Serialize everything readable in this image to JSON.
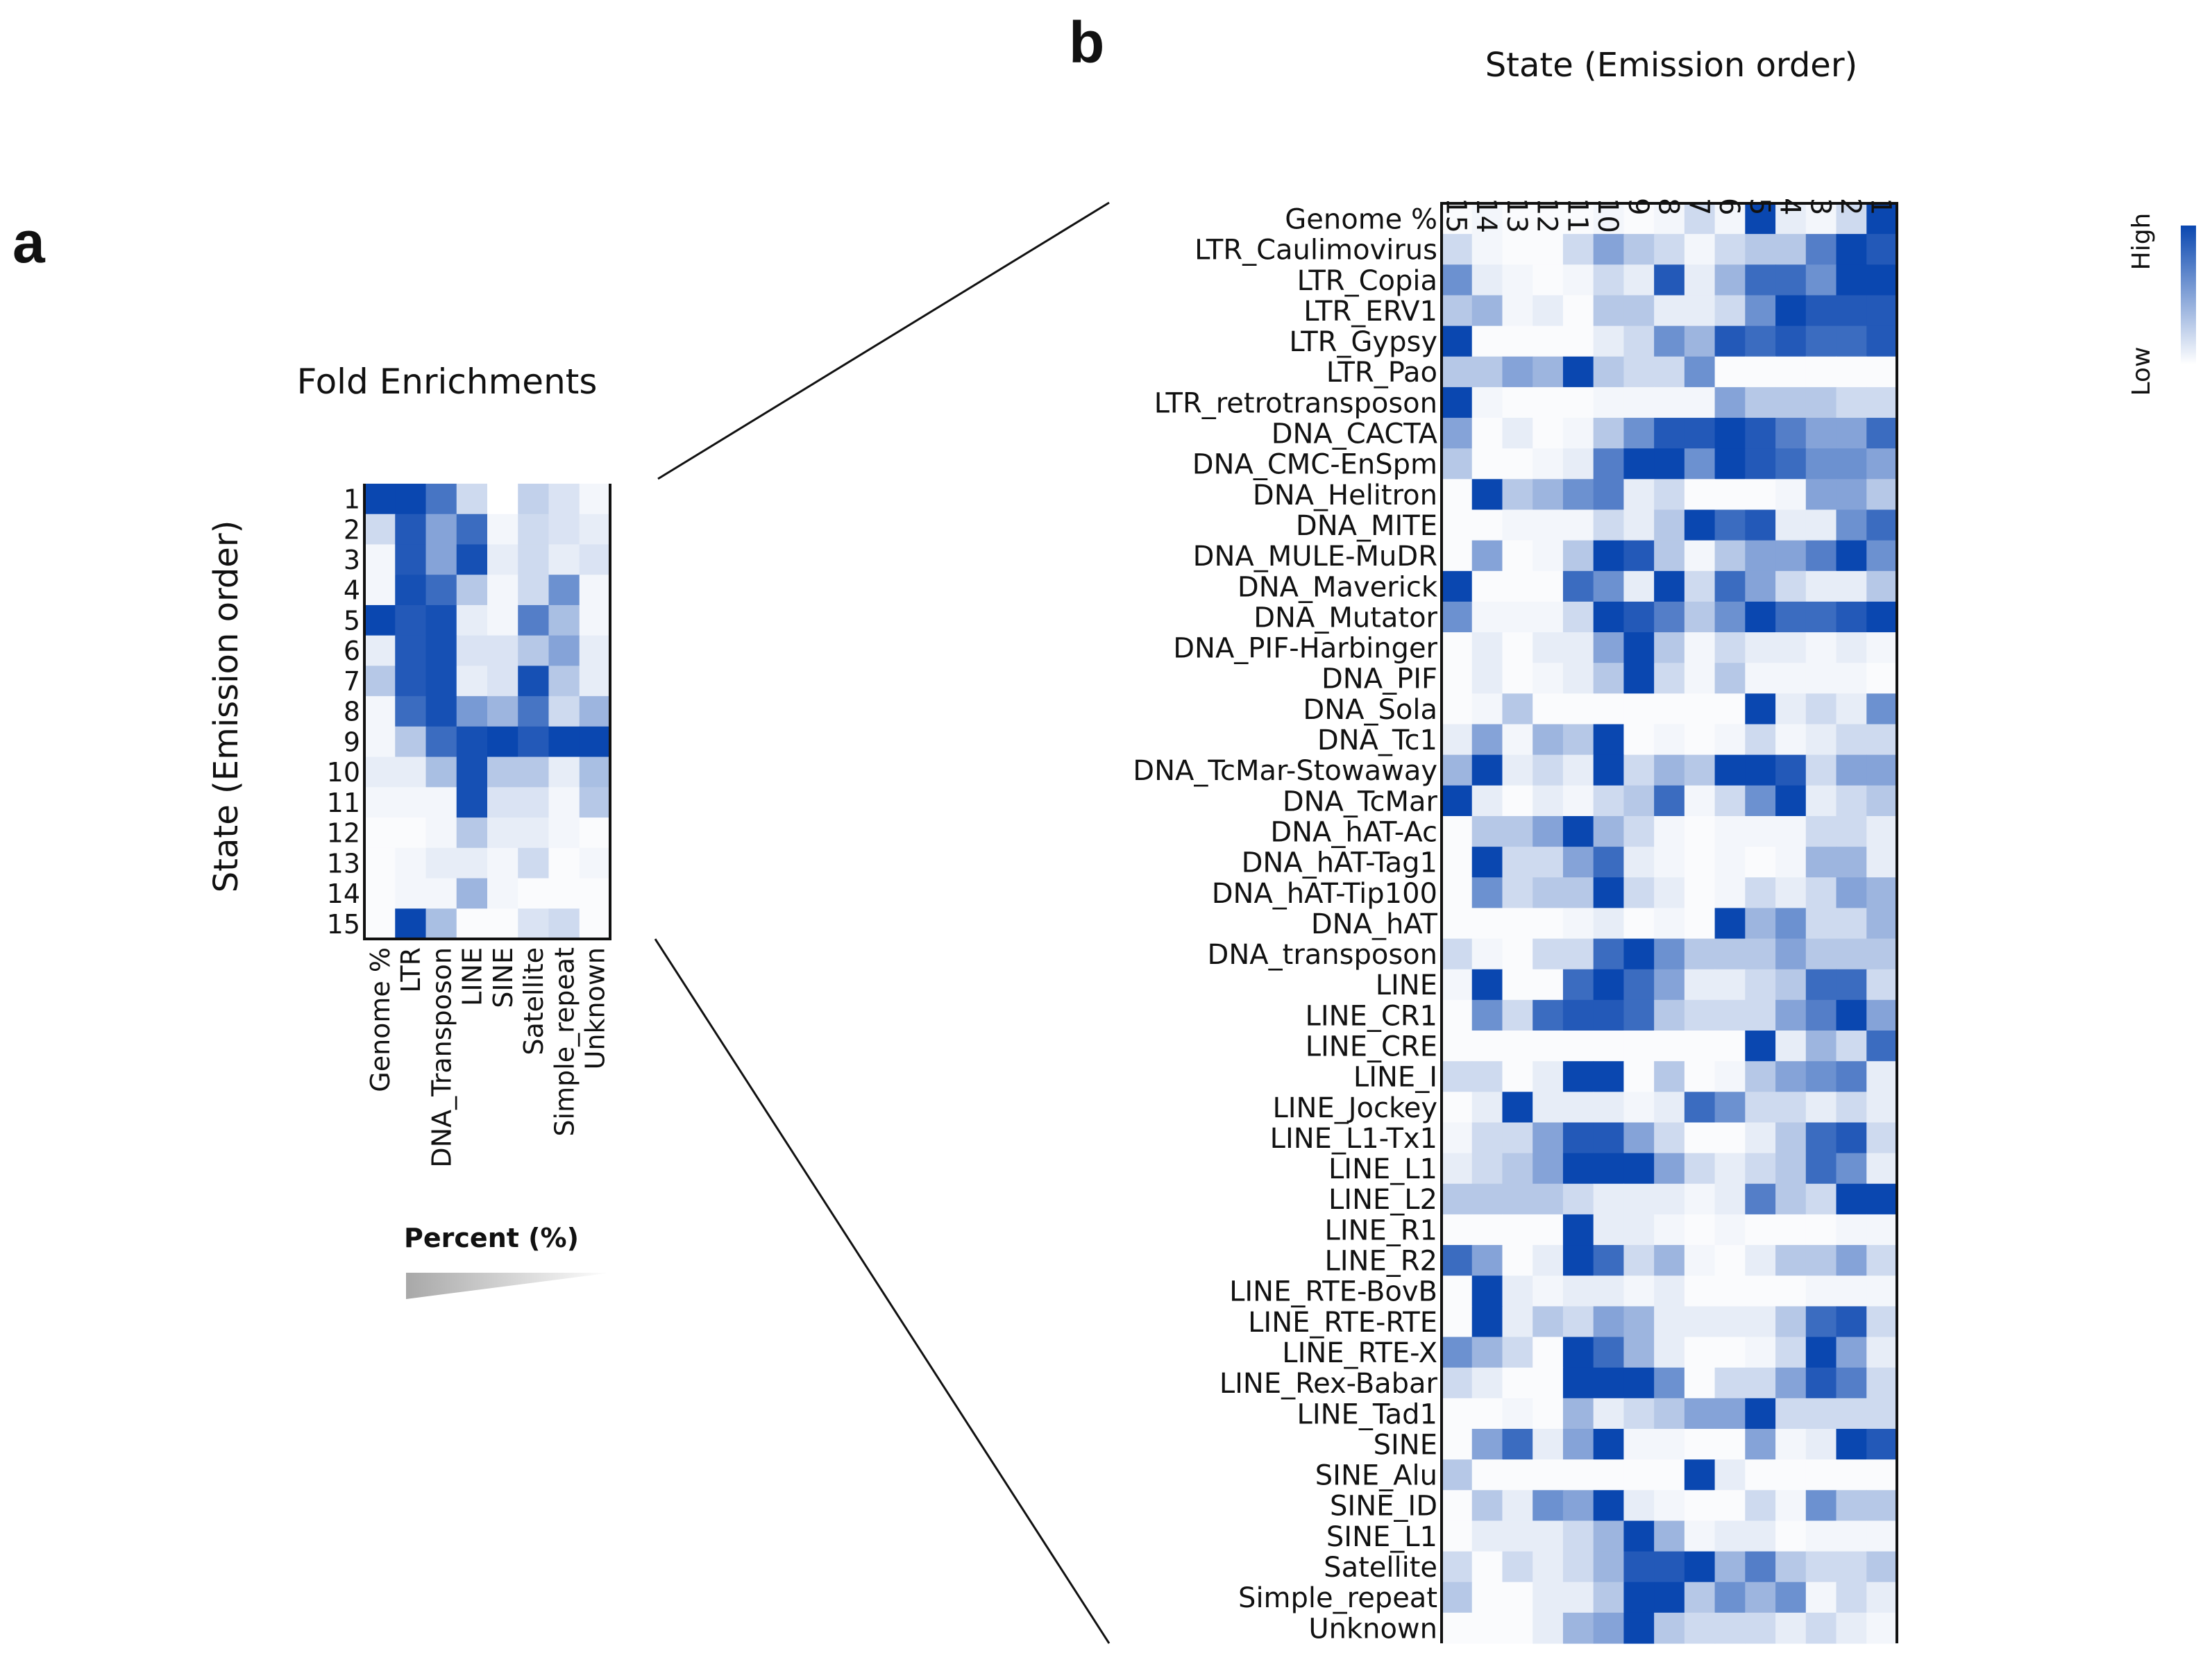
{
  "panels": {
    "a": "a",
    "b": "b"
  },
  "chart_data": [
    {
      "type": "heatmap",
      "panel": "a",
      "title": "Fold Enrichments",
      "ylabel": "State (Emission order)",
      "rows": [
        "1",
        "2",
        "3",
        "4",
        "5",
        "6",
        "7",
        "8",
        "9",
        "10",
        "11",
        "12",
        "13",
        "14",
        "15"
      ],
      "columns": [
        "Genome %",
        "LTR",
        "DNA_Transposon",
        "LINE",
        "SINE",
        "Satellite",
        "Simple_repeat",
        "Unknown"
      ],
      "values": [
        [
          1.0,
          1.0,
          0.75,
          0.2,
          0.0,
          0.25,
          0.15,
          0.05
        ],
        [
          0.2,
          0.9,
          0.5,
          0.8,
          0.05,
          0.2,
          0.15,
          0.1
        ],
        [
          0.05,
          0.9,
          0.5,
          0.95,
          0.1,
          0.2,
          0.1,
          0.15
        ],
        [
          0.05,
          0.95,
          0.8,
          0.3,
          0.05,
          0.2,
          0.6,
          0.05
        ],
        [
          1.0,
          0.9,
          0.95,
          0.1,
          0.05,
          0.7,
          0.35,
          0.05
        ],
        [
          0.1,
          0.9,
          0.95,
          0.15,
          0.15,
          0.3,
          0.5,
          0.1
        ],
        [
          0.3,
          0.9,
          0.95,
          0.1,
          0.15,
          0.95,
          0.3,
          0.1
        ],
        [
          0.05,
          0.8,
          0.95,
          0.55,
          0.4,
          0.75,
          0.2,
          0.4
        ],
        [
          0.05,
          0.3,
          0.8,
          0.95,
          1.0,
          0.9,
          1.0,
          1.0
        ],
        [
          0.1,
          0.1,
          0.35,
          0.95,
          0.3,
          0.3,
          0.1,
          0.35
        ],
        [
          0.05,
          0.05,
          0.05,
          0.95,
          0.15,
          0.15,
          0.05,
          0.3
        ],
        [
          0.02,
          0.02,
          0.05,
          0.3,
          0.1,
          0.1,
          0.05,
          0.02
        ],
        [
          0.02,
          0.05,
          0.1,
          0.1,
          0.05,
          0.2,
          0.02,
          0.05
        ],
        [
          0.02,
          0.05,
          0.05,
          0.4,
          0.05,
          0.02,
          0.02,
          0.02
        ],
        [
          0.02,
          1.0,
          0.35,
          0.02,
          0.02,
          0.15,
          0.2,
          0.02
        ]
      ],
      "legend": {
        "label": "Percent (%)"
      }
    },
    {
      "type": "heatmap",
      "panel": "b",
      "title": "State (Emission order)",
      "columns": [
        "15",
        "14",
        "13",
        "12",
        "11",
        "10",
        "9",
        "8",
        "7",
        "6",
        "5",
        "4",
        "3",
        "2",
        "1"
      ],
      "rows": [
        "Genome %",
        "LTR_Caulimovirus",
        "LTR_Copia",
        "LTR_ERV1",
        "LTR_Gypsy",
        "LTR_Pao",
        "LTR_retrotransposon",
        "DNA_CACTA",
        "DNA_CMC-EnSpm",
        "DNA_Helitron",
        "DNA_MITE",
        "DNA_MULE-MuDR",
        "DNA_Maverick",
        "DNA_Mutator",
        "DNA_PIF-Harbinger",
        "DNA_PIF",
        "DNA_Sola",
        "DNA_Tc1",
        "DNA_TcMar-Stowaway",
        "DNA_TcMar",
        "DNA_hAT-Ac",
        "DNA_hAT-Tag1",
        "DNA_hAT-Tip100",
        "DNA_hAT",
        "DNA_transposon",
        "LINE",
        "LINE_CR1",
        "LINE_CRE",
        "LINE_I",
        "LINE_Jockey",
        "LINE_L1-Tx1",
        "LINE_L1",
        "LINE_L2",
        "LINE_R1",
        "LINE_R2",
        "LINE_RTE-BovB",
        "LINE_RTE-RTE",
        "LINE_RTE-X",
        "LINE_Rex-Babar",
        "LINE_Tad1",
        "SINE",
        "SINE_Alu",
        "SINE_ID",
        "SINE_L1",
        "Satellite",
        "Simple_repeat",
        "Unknown"
      ],
      "values": [
        [
          0.02,
          0.05,
          0.02,
          0.02,
          0.02,
          0.05,
          0.02,
          0.05,
          0.2,
          0.05,
          1.0,
          0.1,
          0.05,
          0.2,
          1.0
        ],
        [
          0.2,
          0.05,
          0.02,
          0.02,
          0.2,
          0.5,
          0.3,
          0.2,
          0.05,
          0.2,
          0.3,
          0.3,
          0.7,
          1.0,
          0.9
        ],
        [
          0.6,
          0.1,
          0.05,
          0.02,
          0.05,
          0.2,
          0.1,
          0.9,
          0.1,
          0.4,
          0.8,
          0.8,
          0.6,
          1.0,
          1.0
        ],
        [
          0.3,
          0.4,
          0.05,
          0.1,
          0.02,
          0.3,
          0.3,
          0.1,
          0.1,
          0.2,
          0.6,
          1.0,
          0.9,
          0.9,
          0.9
        ],
        [
          1.0,
          0.02,
          0.02,
          0.02,
          0.02,
          0.1,
          0.2,
          0.6,
          0.4,
          0.9,
          0.8,
          0.9,
          0.8,
          0.8,
          0.9
        ],
        [
          0.3,
          0.3,
          0.5,
          0.4,
          1.0,
          0.3,
          0.2,
          0.2,
          0.6,
          0.02,
          0.02,
          0.02,
          0.02,
          0.02,
          0.02
        ],
        [
          1.0,
          0.05,
          0.02,
          0.02,
          0.02,
          0.05,
          0.05,
          0.05,
          0.05,
          0.5,
          0.3,
          0.3,
          0.3,
          0.2,
          0.2
        ],
        [
          0.5,
          0.02,
          0.1,
          0.02,
          0.05,
          0.3,
          0.6,
          0.9,
          0.9,
          1.0,
          0.9,
          0.7,
          0.5,
          0.5,
          0.8
        ],
        [
          0.3,
          0.02,
          0.02,
          0.05,
          0.1,
          0.7,
          1.0,
          1.0,
          0.6,
          1.0,
          0.9,
          0.8,
          0.6,
          0.6,
          0.5
        ],
        [
          0.02,
          1.0,
          0.3,
          0.4,
          0.6,
          0.7,
          0.1,
          0.2,
          0.02,
          0.02,
          0.02,
          0.05,
          0.5,
          0.5,
          0.3
        ],
        [
          0.02,
          0.02,
          0.05,
          0.05,
          0.05,
          0.2,
          0.1,
          0.3,
          1.0,
          0.8,
          0.9,
          0.1,
          0.1,
          0.6,
          0.8
        ],
        [
          0.02,
          0.5,
          0.02,
          0.05,
          0.3,
          1.0,
          0.9,
          0.3,
          0.05,
          0.3,
          0.5,
          0.5,
          0.7,
          1.0,
          0.6
        ],
        [
          1.0,
          0.02,
          0.02,
          0.02,
          0.8,
          0.6,
          0.1,
          1.0,
          0.2,
          0.8,
          0.5,
          0.2,
          0.1,
          0.1,
          0.3
        ],
        [
          0.6,
          0.05,
          0.05,
          0.05,
          0.2,
          1.0,
          0.9,
          0.7,
          0.3,
          0.6,
          1.0,
          0.8,
          0.8,
          0.9,
          1.0
        ],
        [
          0.02,
          0.1,
          0.02,
          0.1,
          0.1,
          0.5,
          1.0,
          0.3,
          0.05,
          0.2,
          0.1,
          0.1,
          0.05,
          0.1,
          0.05
        ],
        [
          0.02,
          0.1,
          0.02,
          0.05,
          0.1,
          0.3,
          1.0,
          0.2,
          0.05,
          0.3,
          0.05,
          0.05,
          0.05,
          0.05,
          0.02
        ],
        [
          0.02,
          0.05,
          0.3,
          0.02,
          0.02,
          0.02,
          0.02,
          0.02,
          0.02,
          0.02,
          1.0,
          0.1,
          0.2,
          0.1,
          0.6
        ],
        [
          0.1,
          0.5,
          0.05,
          0.4,
          0.3,
          1.0,
          0.02,
          0.05,
          0.02,
          0.05,
          0.2,
          0.05,
          0.1,
          0.2,
          0.2
        ],
        [
          0.4,
          1.0,
          0.1,
          0.2,
          0.1,
          1.0,
          0.2,
          0.4,
          0.3,
          1.0,
          1.0,
          0.9,
          0.2,
          0.5,
          0.5
        ],
        [
          1.0,
          0.1,
          0.02,
          0.1,
          0.05,
          0.2,
          0.3,
          0.8,
          0.05,
          0.2,
          0.6,
          1.0,
          0.1,
          0.2,
          0.3
        ],
        [
          0.02,
          0.3,
          0.3,
          0.5,
          1.0,
          0.4,
          0.2,
          0.05,
          0.02,
          0.05,
          0.05,
          0.05,
          0.2,
          0.2,
          0.1
        ],
        [
          0.02,
          1.0,
          0.2,
          0.2,
          0.5,
          0.8,
          0.1,
          0.05,
          0.02,
          0.05,
          0.02,
          0.05,
          0.4,
          0.4,
          0.1
        ],
        [
          0.02,
          0.6,
          0.2,
          0.3,
          0.3,
          1.0,
          0.2,
          0.1,
          0.02,
          0.05,
          0.2,
          0.1,
          0.2,
          0.5,
          0.4
        ],
        [
          0.02,
          0.02,
          0.02,
          0.02,
          0.05,
          0.1,
          0.02,
          0.05,
          0.02,
          1.0,
          0.4,
          0.6,
          0.2,
          0.2,
          0.4
        ],
        [
          0.2,
          0.05,
          0.02,
          0.2,
          0.2,
          0.8,
          1.0,
          0.6,
          0.3,
          0.3,
          0.3,
          0.5,
          0.3,
          0.3,
          0.3
        ],
        [
          0.05,
          1.0,
          0.02,
          0.02,
          0.8,
          1.0,
          0.8,
          0.5,
          0.1,
          0.1,
          0.2,
          0.3,
          0.8,
          0.8,
          0.2
        ],
        [
          0.02,
          0.6,
          0.2,
          0.8,
          0.9,
          0.9,
          0.8,
          0.3,
          0.2,
          0.2,
          0.2,
          0.5,
          0.7,
          1.0,
          0.5
        ],
        [
          0.02,
          0.02,
          0.02,
          0.02,
          0.02,
          0.02,
          0.02,
          0.02,
          0.02,
          0.02,
          1.0,
          0.1,
          0.4,
          0.2,
          0.8
        ],
        [
          0.2,
          0.2,
          0.02,
          0.1,
          1.0,
          1.0,
          0.02,
          0.3,
          0.02,
          0.05,
          0.3,
          0.5,
          0.6,
          0.7,
          0.1
        ],
        [
          0.02,
          0.1,
          1.0,
          0.1,
          0.1,
          0.1,
          0.05,
          0.1,
          0.8,
          0.6,
          0.2,
          0.2,
          0.1,
          0.2,
          0.1
        ],
        [
          0.05,
          0.2,
          0.2,
          0.5,
          0.9,
          0.9,
          0.5,
          0.2,
          0.02,
          0.02,
          0.1,
          0.3,
          0.8,
          0.9,
          0.2
        ],
        [
          0.1,
          0.2,
          0.3,
          0.5,
          1.0,
          1.0,
          1.0,
          0.5,
          0.2,
          0.1,
          0.2,
          0.3,
          0.8,
          0.6,
          0.1
        ],
        [
          0.3,
          0.3,
          0.3,
          0.3,
          0.2,
          0.1,
          0.1,
          0.1,
          0.05,
          0.1,
          0.7,
          0.3,
          0.2,
          1.0,
          1.0
        ],
        [
          0.02,
          0.02,
          0.02,
          0.02,
          1.0,
          0.1,
          0.1,
          0.05,
          0.02,
          0.05,
          0.02,
          0.02,
          0.02,
          0.05,
          0.05
        ],
        [
          0.8,
          0.5,
          0.02,
          0.1,
          1.0,
          0.8,
          0.2,
          0.4,
          0.05,
          0.02,
          0.1,
          0.3,
          0.3,
          0.5,
          0.2
        ],
        [
          0.02,
          1.0,
          0.1,
          0.05,
          0.1,
          0.1,
          0.05,
          0.1,
          0.02,
          0.02,
          0.02,
          0.02,
          0.05,
          0.05,
          0.05
        ],
        [
          0.02,
          1.0,
          0.1,
          0.3,
          0.2,
          0.5,
          0.4,
          0.1,
          0.1,
          0.1,
          0.1,
          0.3,
          0.8,
          0.9,
          0.2
        ],
        [
          0.6,
          0.4,
          0.2,
          0.02,
          1.0,
          0.8,
          0.4,
          0.1,
          0.02,
          0.02,
          0.05,
          0.2,
          1.0,
          0.5,
          0.1
        ],
        [
          0.2,
          0.1,
          0.02,
          0.02,
          1.0,
          1.0,
          1.0,
          0.6,
          0.02,
          0.2,
          0.2,
          0.5,
          0.9,
          0.7,
          0.2
        ],
        [
          0.02,
          0.02,
          0.05,
          0.02,
          0.4,
          0.1,
          0.2,
          0.3,
          0.5,
          0.5,
          1.0,
          0.2,
          0.2,
          0.2,
          0.2
        ],
        [
          0.02,
          0.5,
          0.8,
          0.1,
          0.5,
          1.0,
          0.05,
          0.05,
          0.02,
          0.02,
          0.5,
          0.05,
          0.1,
          1.0,
          0.9
        ],
        [
          0.3,
          0.02,
          0.02,
          0.02,
          0.02,
          0.02,
          0.02,
          0.02,
          1.0,
          0.1,
          0.02,
          0.02,
          0.02,
          0.02,
          0.02
        ],
        [
          0.02,
          0.3,
          0.1,
          0.6,
          0.5,
          1.0,
          0.1,
          0.05,
          0.02,
          0.02,
          0.2,
          0.05,
          0.6,
          0.3,
          0.3
        ],
        [
          0.02,
          0.1,
          0.1,
          0.1,
          0.2,
          0.4,
          1.0,
          0.4,
          0.05,
          0.1,
          0.1,
          0.02,
          0.05,
          0.05,
          0.05
        ],
        [
          0.2,
          0.02,
          0.2,
          0.1,
          0.2,
          0.4,
          0.9,
          0.9,
          1.0,
          0.4,
          0.7,
          0.3,
          0.2,
          0.2,
          0.3
        ],
        [
          0.3,
          0.02,
          0.02,
          0.1,
          0.1,
          0.3,
          1.0,
          1.0,
          0.3,
          0.6,
          0.4,
          0.6,
          0.05,
          0.2,
          0.1
        ],
        [
          0.02,
          0.02,
          0.02,
          0.1,
          0.4,
          0.5,
          1.0,
          0.3,
          0.2,
          0.2,
          0.2,
          0.1,
          0.2,
          0.1,
          0.05
        ]
      ],
      "legend": {
        "high": "High",
        "low": "Low"
      }
    }
  ],
  "colors": {
    "high": "#0a47b0",
    "low": "#ffffff",
    "axis": "#111111"
  }
}
